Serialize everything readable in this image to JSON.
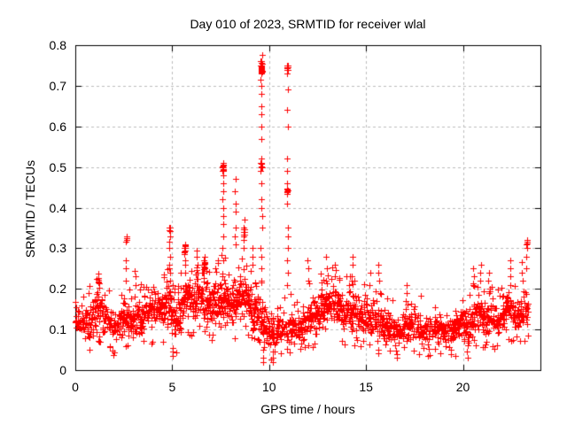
{
  "window": {
    "background": "#ffffff",
    "foreground": "#000000"
  },
  "chart_data": {
    "type": "scatter",
    "title": "Day 010 of 2023, SRMTID for receiver wlal",
    "xlabel": "GPS time / hours",
    "ylabel": "SRMTID / TECUs",
    "xlim": [
      0,
      24
    ],
    "ylim": [
      0,
      0.8
    ],
    "x_ticks": [
      {
        "v": 0,
        "label": "0"
      },
      {
        "v": 5,
        "label": "5"
      },
      {
        "v": 10,
        "label": "10"
      },
      {
        "v": 15,
        "label": "15"
      },
      {
        "v": 20,
        "label": "20"
      }
    ],
    "y_ticks": [
      {
        "v": 0.0,
        "label": "0"
      },
      {
        "v": 0.1,
        "label": "0.1"
      },
      {
        "v": 0.2,
        "label": "0.2"
      },
      {
        "v": 0.3,
        "label": "0.3"
      },
      {
        "v": 0.4,
        "label": "0.4"
      },
      {
        "v": 0.5,
        "label": "0.5"
      },
      {
        "v": 0.6,
        "label": "0.6"
      },
      {
        "v": 0.7,
        "label": "0.7"
      },
      {
        "v": 0.8,
        "label": "0.8"
      }
    ],
    "grid": {
      "show": true,
      "color": "#bdbdbd",
      "dash": [
        3,
        3
      ]
    },
    "axis_color": "#000000",
    "legend": "none",
    "marker": {
      "shape": "plus",
      "color": "#ff0000",
      "size": 7
    },
    "series": [
      {
        "name": "SRMTID",
        "t_start": 0.0,
        "t_end": 23.35,
        "sample_step": 0.025,
        "envelope": [
          [
            0.0,
            0.07,
            0.17
          ],
          [
            0.4,
            0.07,
            0.15
          ],
          [
            0.8,
            0.08,
            0.18
          ],
          [
            1.15,
            0.1,
            0.22
          ],
          [
            1.5,
            0.08,
            0.17
          ],
          [
            2.0,
            0.06,
            0.15
          ],
          [
            2.5,
            0.07,
            0.18
          ],
          [
            3.0,
            0.07,
            0.18
          ],
          [
            3.5,
            0.08,
            0.18
          ],
          [
            4.0,
            0.09,
            0.19
          ],
          [
            4.5,
            0.1,
            0.21
          ],
          [
            4.9,
            0.1,
            0.22
          ],
          [
            5.15,
            0.06,
            0.18
          ],
          [
            5.5,
            0.1,
            0.22
          ],
          [
            5.8,
            0.12,
            0.24
          ],
          [
            6.1,
            0.1,
            0.22
          ],
          [
            6.4,
            0.12,
            0.26
          ],
          [
            6.7,
            0.12,
            0.25
          ],
          [
            7.0,
            0.1,
            0.22
          ],
          [
            7.3,
            0.1,
            0.23
          ],
          [
            7.6,
            0.12,
            0.26
          ],
          [
            7.9,
            0.1,
            0.23
          ],
          [
            8.2,
            0.1,
            0.22
          ],
          [
            8.5,
            0.11,
            0.24
          ],
          [
            8.8,
            0.12,
            0.25
          ],
          [
            9.1,
            0.09,
            0.22
          ],
          [
            9.4,
            0.08,
            0.2
          ],
          [
            9.7,
            0.07,
            0.18
          ],
          [
            10.0,
            0.05,
            0.15
          ],
          [
            10.3,
            0.04,
            0.13
          ],
          [
            10.6,
            0.06,
            0.14
          ],
          [
            10.9,
            0.06,
            0.15
          ],
          [
            11.2,
            0.07,
            0.16
          ],
          [
            11.5,
            0.06,
            0.15
          ],
          [
            11.8,
            0.07,
            0.17
          ],
          [
            12.1,
            0.08,
            0.19
          ],
          [
            12.4,
            0.08,
            0.19
          ],
          [
            12.7,
            0.09,
            0.21
          ],
          [
            13.0,
            0.1,
            0.22
          ],
          [
            13.3,
            0.1,
            0.22
          ],
          [
            13.6,
            0.1,
            0.21
          ],
          [
            13.9,
            0.09,
            0.2
          ],
          [
            14.2,
            0.08,
            0.2
          ],
          [
            14.5,
            0.09,
            0.2
          ],
          [
            14.8,
            0.08,
            0.18
          ],
          [
            15.1,
            0.08,
            0.18
          ],
          [
            15.4,
            0.08,
            0.18
          ],
          [
            15.7,
            0.07,
            0.17
          ],
          [
            16.0,
            0.06,
            0.16
          ],
          [
            16.3,
            0.06,
            0.15
          ],
          [
            16.6,
            0.05,
            0.14
          ],
          [
            16.9,
            0.06,
            0.15
          ],
          [
            17.2,
            0.06,
            0.16
          ],
          [
            17.5,
            0.07,
            0.16
          ],
          [
            17.8,
            0.06,
            0.15
          ],
          [
            18.1,
            0.06,
            0.14
          ],
          [
            18.4,
            0.06,
            0.14
          ],
          [
            18.7,
            0.06,
            0.14
          ],
          [
            19.0,
            0.06,
            0.14
          ],
          [
            19.3,
            0.05,
            0.13
          ],
          [
            19.6,
            0.06,
            0.14
          ],
          [
            19.9,
            0.08,
            0.17
          ],
          [
            20.2,
            0.05,
            0.14
          ],
          [
            20.5,
            0.07,
            0.18
          ],
          [
            20.8,
            0.09,
            0.19
          ],
          [
            21.1,
            0.08,
            0.18
          ],
          [
            21.4,
            0.08,
            0.18
          ],
          [
            21.7,
            0.08,
            0.16
          ],
          [
            22.0,
            0.09,
            0.18
          ],
          [
            22.3,
            0.1,
            0.2
          ],
          [
            22.6,
            0.1,
            0.19
          ],
          [
            22.9,
            0.08,
            0.18
          ],
          [
            23.1,
            0.1,
            0.21
          ],
          [
            23.35,
            0.1,
            0.2
          ]
        ],
        "spikes": [
          {
            "t": 2.62,
            "values": [
              0.22,
              0.25,
              0.27,
              0.315,
              0.32,
              0.325,
              0.33
            ]
          },
          {
            "t": 3.1,
            "values": [
              0.21,
              0.23,
              0.245
            ]
          },
          {
            "t": 4.87,
            "values": [
              0.22,
              0.24,
              0.26,
              0.28,
              0.3,
              0.315,
              0.33,
              0.345,
              0.35
            ]
          },
          {
            "t": 5.05,
            "values": [
              0.035,
              0.045,
              0.055
            ]
          },
          {
            "t": 5.65,
            "values": [
              0.24,
              0.26,
              0.27,
              0.285,
              0.29,
              0.3,
              0.305,
              0.31
            ]
          },
          {
            "t": 6.28,
            "values": [
              0.24,
              0.26,
              0.28,
              0.295
            ]
          },
          {
            "t": 6.65,
            "values": [
              0.24,
              0.25,
              0.26,
              0.27,
              0.28
            ]
          },
          {
            "t": 7.62,
            "values": [
              0.27,
              0.3,
              0.33,
              0.36,
              0.38,
              0.4,
              0.42,
              0.44,
              0.46,
              0.48,
              0.49,
              0.495,
              0.5,
              0.505,
              0.51
            ]
          },
          {
            "t": 8.25,
            "values": [
              0.31,
              0.33,
              0.35,
              0.39,
              0.41,
              0.44,
              0.47
            ]
          },
          {
            "t": 8.7,
            "values": [
              0.3,
              0.32,
              0.33,
              0.34,
              0.35,
              0.37
            ]
          },
          {
            "t": 9.15,
            "values": [
              0.26,
              0.28,
              0.3
            ]
          },
          {
            "t": 9.6,
            "values": [
              0.22,
              0.25,
              0.28,
              0.3,
              0.35,
              0.38,
              0.4,
              0.42,
              0.46,
              0.49,
              0.5,
              0.51,
              0.52,
              0.57,
              0.6,
              0.63,
              0.65,
              0.68,
              0.7,
              0.715,
              0.73,
              0.735,
              0.74,
              0.745,
              0.75,
              0.755,
              0.76,
              0.776
            ]
          },
          {
            "t": 9.7,
            "values": [
              0.02,
              0.03,
              0.05,
              0.07,
              0.09
            ]
          },
          {
            "t": 10.2,
            "values": [
              0.02,
              0.03,
              0.045
            ]
          },
          {
            "t": 10.95,
            "values": [
              0.21,
              0.24,
              0.27,
              0.3,
              0.33,
              0.35,
              0.41,
              0.44,
              0.445,
              0.46,
              0.49,
              0.52,
              0.6,
              0.64,
              0.69,
              0.73,
              0.74,
              0.745,
              0.75
            ]
          },
          {
            "t": 12.0,
            "values": [
              0.22,
              0.25,
              0.27
            ]
          },
          {
            "t": 12.95,
            "values": [
              0.22,
              0.25,
              0.28
            ]
          },
          {
            "t": 13.4,
            "values": [
              0.23,
              0.26
            ]
          },
          {
            "t": 14.3,
            "values": [
              0.23,
              0.26,
              0.28
            ]
          },
          {
            "t": 15.2,
            "values": [
              0.21,
              0.24
            ]
          },
          {
            "t": 15.65,
            "values": [
              0.22,
              0.24,
              0.26
            ]
          },
          {
            "t": 16.6,
            "values": [
              0.03,
              0.04
            ]
          },
          {
            "t": 17.1,
            "values": [
              0.19,
              0.21
            ]
          },
          {
            "t": 19.4,
            "values": [
              0.04,
              0.05
            ]
          },
          {
            "t": 20.2,
            "values": [
              0.03,
              0.045,
              0.06
            ]
          },
          {
            "t": 20.55,
            "values": [
              0.21,
              0.23,
              0.25
            ]
          },
          {
            "t": 20.9,
            "values": [
              0.22,
              0.24,
              0.26
            ]
          },
          {
            "t": 21.35,
            "values": [
              0.2,
              0.22,
              0.24
            ]
          },
          {
            "t": 22.45,
            "values": [
              0.21,
              0.23,
              0.25,
              0.27
            ]
          },
          {
            "t": 23.05,
            "values": [
              0.22,
              0.24,
              0.265
            ]
          },
          {
            "t": 23.3,
            "values": [
              0.25,
              0.28,
              0.3,
              0.31,
              0.315,
              0.32
            ]
          }
        ],
        "clusters": [
          {
            "t": 9.6,
            "v": 0.745,
            "n": 14,
            "jt": 0.06,
            "jv": 0.015
          },
          {
            "t": 9.6,
            "v": 0.5,
            "n": 5,
            "jt": 0.04,
            "jv": 0.01
          },
          {
            "t": 10.95,
            "v": 0.745,
            "n": 5,
            "jt": 0.04,
            "jv": 0.008
          },
          {
            "t": 10.95,
            "v": 0.44,
            "n": 4,
            "jt": 0.03,
            "jv": 0.008
          },
          {
            "t": 7.62,
            "v": 0.5,
            "n": 8,
            "jt": 0.05,
            "jv": 0.01
          },
          {
            "t": 4.87,
            "v": 0.345,
            "n": 4,
            "jt": 0.04,
            "jv": 0.008
          },
          {
            "t": 8.7,
            "v": 0.34,
            "n": 6,
            "jt": 0.08,
            "jv": 0.012
          },
          {
            "t": 5.65,
            "v": 0.3,
            "n": 5,
            "jt": 0.06,
            "jv": 0.01
          },
          {
            "t": 6.65,
            "v": 0.26,
            "n": 5,
            "jt": 0.08,
            "jv": 0.01
          },
          {
            "t": 1.2,
            "v": 0.215,
            "n": 6,
            "jt": 0.08,
            "jv": 0.012
          },
          {
            "t": 23.3,
            "v": 0.31,
            "n": 5,
            "jt": 0.06,
            "jv": 0.01
          }
        ]
      }
    ]
  }
}
